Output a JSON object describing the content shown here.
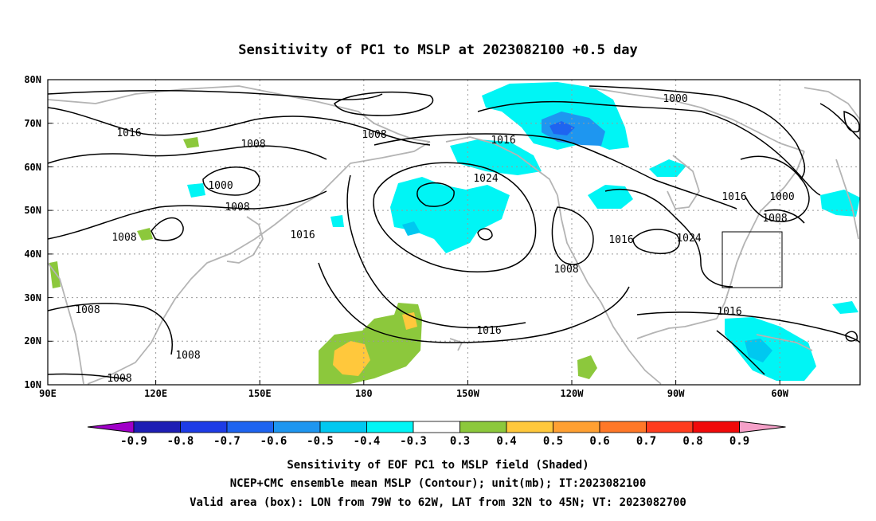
{
  "title": "Sensitivity of PC1 to MSLP at 2023082100 +0.5 day",
  "map": {
    "lon_range": [
      "90E",
      "40W"
    ],
    "lat_range": [
      "10N",
      "80N"
    ],
    "lat_labels": [
      "80N",
      "70N",
      "60N",
      "50N",
      "40N",
      "30N",
      "20N",
      "10N"
    ],
    "lon_labels": [
      "90E",
      "120E",
      "150E",
      "180",
      "150W",
      "120W",
      "90W",
      "60W"
    ],
    "grid": "dotted",
    "colors": {
      "coastline": "#b4b4b4",
      "contour": "#000000",
      "shade_neg_03_04": "#00f5f5",
      "shade_neg_04_05": "#00c8f0",
      "shade_neg_05_06": "#1e78f0",
      "shade_pos_03_04": "#8cc83c",
      "shade_pos_04_05": "#ffc83c"
    },
    "contour_labels": [
      "1016",
      "1008",
      "1000",
      "1008",
      "1008",
      "1016",
      "1008",
      "1016",
      "1024",
      "1016",
      "1000",
      "1016",
      "1016",
      "1008",
      "1016",
      "1024",
      "1016",
      "1000",
      "1008",
      "1008",
      "1008",
      "1008",
      "1016"
    ],
    "valid_box": {
      "lon": [
        "79W",
        "62W"
      ],
      "lat": [
        "32N",
        "45N"
      ]
    }
  },
  "colorbar": {
    "labels": [
      "-0.9",
      "-0.8",
      "-0.7",
      "-0.6",
      "-0.5",
      "-0.4",
      "-0.3",
      "0.3",
      "0.4",
      "0.5",
      "0.6",
      "0.7",
      "0.8",
      "0.9"
    ],
    "colors": [
      "#a000c8",
      "#1e1eb4",
      "#1e3ce6",
      "#1e64f0",
      "#1e96f0",
      "#00c8f0",
      "#00f5f5",
      "#ffffff",
      "#8cc83c",
      "#ffc83c",
      "#ffa032",
      "#ff7828",
      "#ff3c1e",
      "#f00a0a",
      "#f5a0c8"
    ]
  },
  "captions": [
    "Sensitivity of EOF PC1 to MSLP field (Shaded)",
    "NCEP+CMC ensemble mean MSLP (Contour); unit(mb); IT:2023082100",
    "Valid area (box): LON from 79W to 62W, LAT from 32N to 45N; VT: 2023082700"
  ]
}
